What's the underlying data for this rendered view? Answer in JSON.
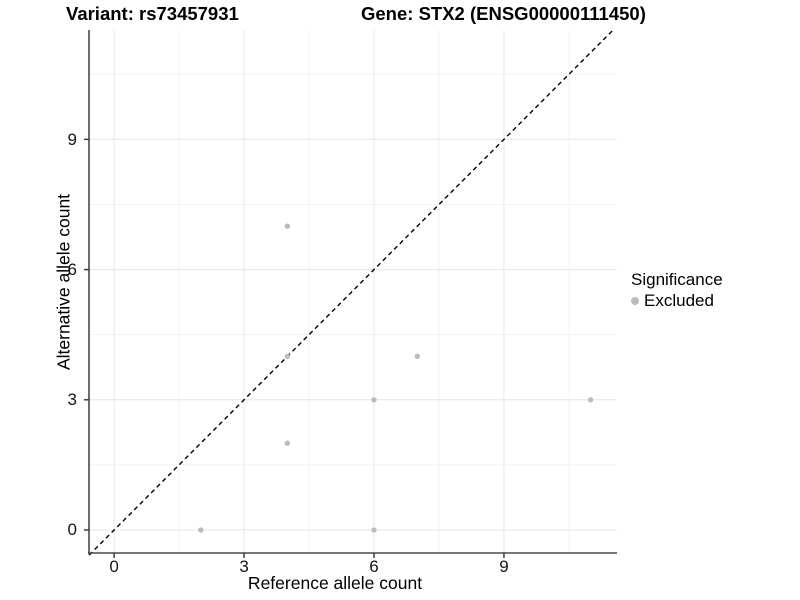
{
  "header": {
    "variant_title": "Variant: rs73457931",
    "gene_title": "Gene: STX2 (ENSG00000111450)"
  },
  "chart_data": {
    "type": "scatter",
    "xlabel": "Reference allele count",
    "ylabel": "Alternative allele count",
    "x_ticks": [
      0,
      3,
      6,
      9
    ],
    "y_ticks": [
      0,
      3,
      6,
      9
    ],
    "x_minor_gridlines": [
      1.5,
      4.5,
      7.5,
      10.5
    ],
    "y_minor_gridlines": [
      1.5,
      4.5,
      7.5,
      10.5
    ],
    "xlim": [
      -0.58,
      11.61
    ],
    "ylim": [
      -0.53,
      11.52
    ],
    "grid": true,
    "identity_line": {
      "slope": 1,
      "intercept": 0,
      "style": "dashed",
      "color": "#000000"
    },
    "series": [
      {
        "name": "Excluded",
        "color": "#bcbcbc",
        "points": [
          [
            2,
            0
          ],
          [
            6,
            0
          ],
          [
            4,
            2
          ],
          [
            6,
            3
          ],
          [
            11,
            3
          ],
          [
            4,
            4
          ],
          [
            7,
            4
          ],
          [
            4,
            7
          ]
        ]
      }
    ],
    "legend": {
      "title": "Significance",
      "position": "right",
      "items": [
        {
          "label": "Excluded",
          "color": "#bcbcbc"
        }
      ]
    },
    "colors": {
      "major_grid": "#e7e7e7",
      "minor_grid": "#f2f2f2",
      "axis_line": "#4a4a4a",
      "tick_mark": "#333333"
    }
  }
}
